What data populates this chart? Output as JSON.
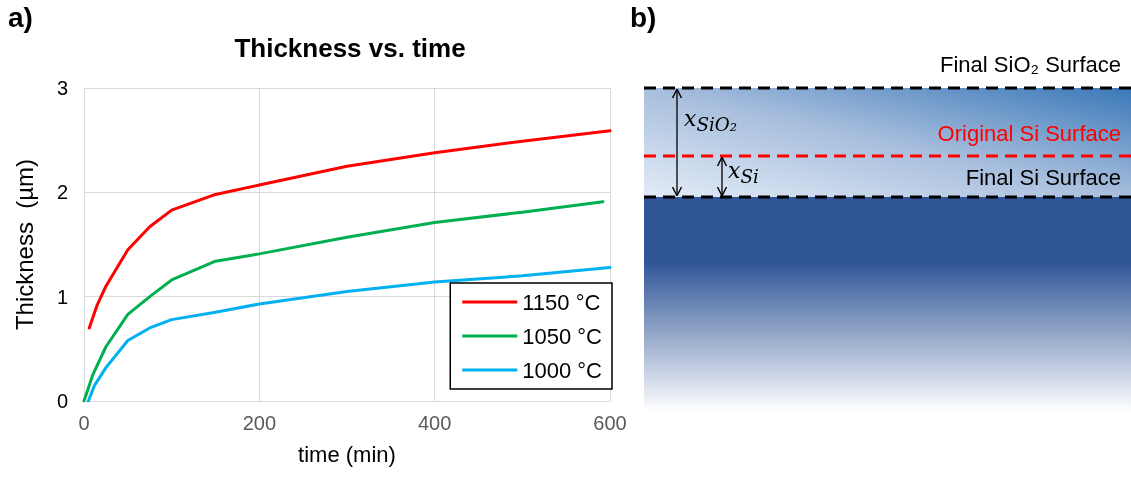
{
  "chart_data": [
    {
      "type": "line",
      "title": "Thickness vs. time",
      "xlabel": "time (min)",
      "ylabel": "Thickness  (µm)",
      "annotations": [
        "a)"
      ],
      "xlim": [
        0,
        600
      ],
      "xticks": [
        0,
        200,
        400,
        600
      ],
      "ylim": [
        0,
        3
      ],
      "yticks": [
        0,
        1,
        2,
        3
      ],
      "grid": true,
      "legend": "bottom right",
      "marker": "none",
      "line_style": "solid",
      "series": [
        {
          "name": "1150 °C",
          "color": "#ff0000",
          "x": [
            6,
            15,
            25,
            50,
            75,
            100,
            150,
            200,
            300,
            400,
            500,
            600
          ],
          "values": [
            0.7,
            0.92,
            1.1,
            1.45,
            1.67,
            1.83,
            1.98,
            2.07,
            2.25,
            2.38,
            2.49,
            2.59
          ]
        },
        {
          "name": "1050 °C",
          "color": "#00b050",
          "x": [
            0,
            10,
            25,
            50,
            75,
            100,
            150,
            200,
            300,
            400,
            500,
            592
          ],
          "values": [
            0,
            0.25,
            0.52,
            0.83,
            1.0,
            1.16,
            1.34,
            1.41,
            1.57,
            1.71,
            1.81,
            1.91
          ]
        },
        {
          "name": "1000 °C",
          "color": "#00b0f0",
          "x": [
            5,
            12,
            25,
            50,
            75,
            100,
            150,
            200,
            300,
            400,
            500,
            600
          ],
          "values": [
            0,
            0.15,
            0.32,
            0.58,
            0.7,
            0.78,
            0.85,
            0.93,
            1.05,
            1.14,
            1.2,
            1.28
          ]
        }
      ]
    },
    {
      "type": "other",
      "annotations": [
        "b)",
        "Final SiO₂ Surface",
        "Original Si Surface",
        "Final Si Surface",
        "x$_{SiO₂}$",
        "x$_{Si}$"
      ]
    }
  ]
}
